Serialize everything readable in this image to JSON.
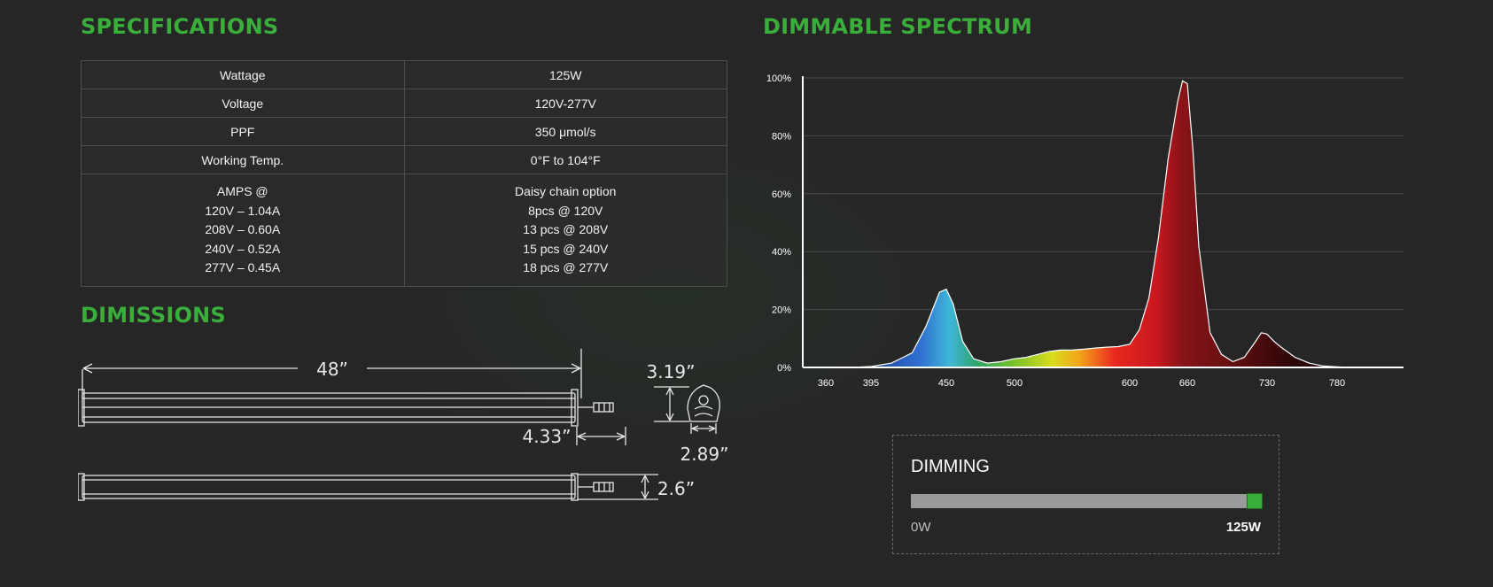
{
  "colors": {
    "heading": "#3aae3a",
    "slider_handle": "#3aae3a",
    "slider_track": "#9a9a9a"
  },
  "specifications": {
    "title": "SPECIFICATIONS",
    "rows": [
      {
        "label": "Wattage",
        "value": "125W"
      },
      {
        "label": "Voltage",
        "value": "120V-277V"
      },
      {
        "label": "PPF",
        "value": "350 μmol/s"
      },
      {
        "label": "Working Temp.",
        "value": "0°F to 104°F"
      }
    ],
    "amps": {
      "label": [
        "AMPS @",
        "120V – 1.04A",
        "208V – 0.60A",
        "240V – 0.52A",
        "277V – 0.45A"
      ],
      "value": [
        "Daisy chain option",
        "8pcs @ 120V",
        "13 pcs @ 208V",
        "15 pcs @ 240V",
        "18 pcs @ 277V"
      ]
    }
  },
  "dimensions": {
    "title": "DIMISSIONS",
    "length": "48”",
    "height": "3.19”",
    "connector": "4.33”",
    "width": "2.89”",
    "depth": "2.6”"
  },
  "spectrum": {
    "title": "DIMMABLE SPECTRUM"
  },
  "chart_data": {
    "type": "area",
    "title": "DIMMABLE SPECTRUM",
    "xlabel": "",
    "ylabel": "",
    "x_ticks": [
      360,
      395,
      450,
      500,
      600,
      660,
      730,
      780
    ],
    "y_ticks": [
      "0%",
      "20%",
      "40%",
      "60%",
      "80%",
      "100%"
    ],
    "ylim": [
      0,
      100
    ],
    "grid": true,
    "series": [
      {
        "x": [
          360,
          380,
          395,
          410,
          425,
          435,
          445,
          450,
          455,
          462,
          470,
          480,
          490,
          500,
          510,
          520,
          530,
          540,
          550,
          560,
          570,
          580,
          590,
          600,
          610,
          620,
          630,
          640,
          650,
          655,
          660,
          665,
          670,
          680,
          690,
          700,
          710,
          720,
          725,
          730,
          735,
          740,
          750,
          760,
          770,
          780,
          790,
          800,
          810,
          830
        ],
        "y": [
          0,
          0,
          0.3,
          1.5,
          5,
          14,
          26,
          27,
          22,
          9,
          3,
          1.5,
          2,
          3,
          3.5,
          4.5,
          5.5,
          6,
          6,
          6.3,
          6.7,
          7,
          7.2,
          8,
          13,
          24,
          45,
          72,
          92,
          99,
          98,
          75,
          42,
          12,
          4.5,
          2,
          3.5,
          9,
          12,
          11.5,
          9,
          7,
          3.5,
          1.5,
          0.5,
          0.2,
          0,
          0,
          0,
          0
        ]
      }
    ]
  },
  "dimming": {
    "title": "DIMMING",
    "min_label": "0W",
    "max_label": "125W",
    "value_fraction": 1.0
  }
}
